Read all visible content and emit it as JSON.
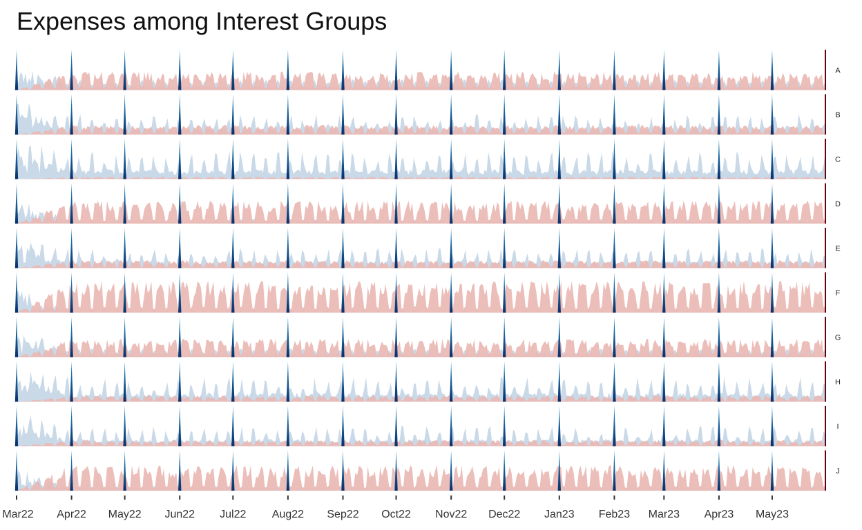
{
  "chart_data": {
    "type": "area",
    "title": "Expenses among Interest Groups",
    "xlabel": "",
    "ylabel": "",
    "legend": "none",
    "grid": false,
    "x_range": [
      "2022-03-01",
      "2023-05-31"
    ],
    "x_ticks": [
      "Mar22",
      "Apr22",
      "May22",
      "Jun22",
      "Jul22",
      "Aug22",
      "Sep22",
      "Oct22",
      "Nov22",
      "Dec22",
      "Jan23",
      "Feb23",
      "Mar23",
      "Apr23",
      "May23"
    ],
    "colors": {
      "negative_area": "#c9d9e8",
      "positive_area": "#eab7b2",
      "month_marker_light": "#2b8cc4",
      "month_marker_dark": "#08306b",
      "end_marker": "#67000d",
      "axis": "#333333"
    },
    "facets": [
      {
        "label": "A",
        "positive_level": 0.42,
        "negative_level": 0.22
      },
      {
        "label": "B",
        "positive_level": 0.22,
        "negative_level": 0.42
      },
      {
        "label": "C",
        "positive_level": 0.05,
        "negative_level": 0.58
      },
      {
        "label": "D",
        "positive_level": 0.52,
        "negative_level": 0.1
      },
      {
        "label": "E",
        "positive_level": 0.18,
        "negative_level": 0.42
      },
      {
        "label": "F",
        "positive_level": 0.72,
        "negative_level": 0.06
      },
      {
        "label": "G",
        "positive_level": 0.42,
        "negative_level": 0.18
      },
      {
        "label": "H",
        "positive_level": 0.14,
        "negative_level": 0.52
      },
      {
        "label": "I",
        "positive_level": 0.14,
        "negative_level": 0.42
      },
      {
        "label": "J",
        "positive_level": 0.58,
        "negative_level": 0.1
      }
    ]
  }
}
